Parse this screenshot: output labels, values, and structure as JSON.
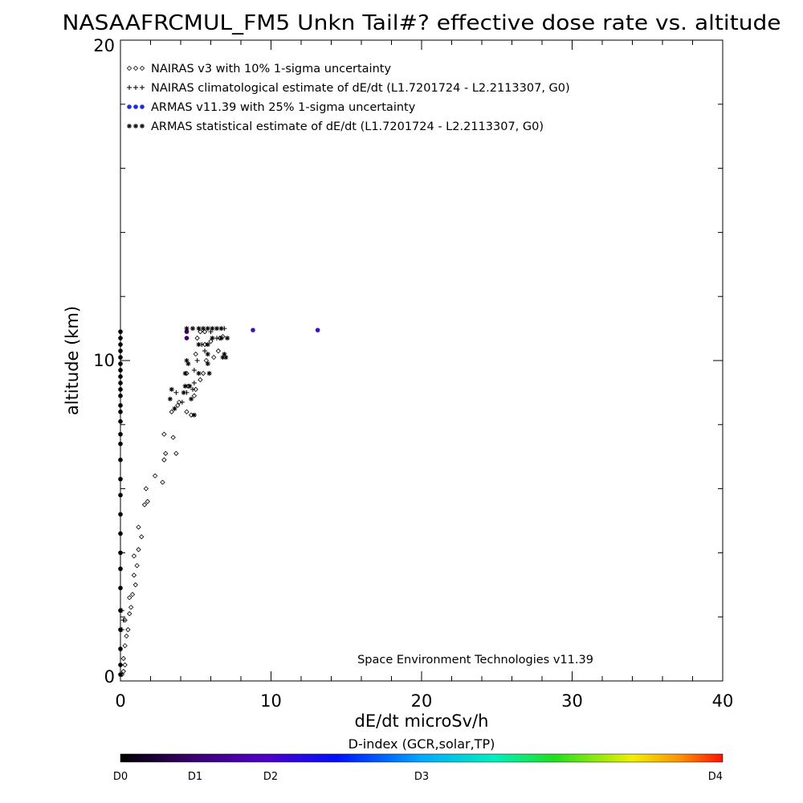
{
  "chart_data": {
    "type": "scatter",
    "title": "NASAAFRCMUL_FM5 Unkn Tail#? effective dose rate vs. altitude",
    "xlabel": "dE/dt microSv/h",
    "ylabel": "altitude (km)",
    "xlim": [
      0,
      40
    ],
    "ylim": [
      0,
      20
    ],
    "xticks": [
      "0",
      "10",
      "20",
      "30",
      "40"
    ],
    "yticks": [
      "0",
      "10",
      "20"
    ],
    "grid": false,
    "legend_position": "top-left",
    "annotation": "Space Environment Technologies v11.39",
    "legend": [
      {
        "marker": "diamond",
        "label": "NAIRAS v3 with 10% 1-sigma uncertainty"
      },
      {
        "marker": "plus",
        "label": "NAIRAS climatological estimate of dE/dt (L1.7201724 - L2.2113307, G0)"
      },
      {
        "marker": "dot",
        "label": "ARMAS v11.39 with 25% 1-sigma uncertainty"
      },
      {
        "marker": "asterisk",
        "label": "ARMAS statistical estimate of dE/dt (L1.7201724 - L2.2113307, G0)"
      }
    ],
    "series": [
      {
        "name": "NAIRAS v3 with 10% 1-sigma uncertainty",
        "marker": "diamond",
        "points": [
          [
            0.1,
            0.2
          ],
          [
            0.2,
            0.3
          ],
          [
            0.3,
            0.5
          ],
          [
            0.2,
            0.7
          ],
          [
            0.3,
            1.1
          ],
          [
            0.4,
            1.4
          ],
          [
            0.5,
            1.6
          ],
          [
            0.3,
            1.9
          ],
          [
            0.6,
            2.1
          ],
          [
            0.7,
            2.3
          ],
          [
            0.6,
            2.6
          ],
          [
            0.8,
            2.7
          ],
          [
            1.0,
            3.0
          ],
          [
            0.9,
            3.3
          ],
          [
            1.1,
            3.6
          ],
          [
            0.9,
            3.9
          ],
          [
            1.2,
            4.1
          ],
          [
            1.4,
            4.5
          ],
          [
            1.2,
            4.8
          ],
          [
            1.6,
            5.5
          ],
          [
            1.8,
            5.6
          ],
          [
            1.7,
            6.0
          ],
          [
            2.3,
            6.4
          ],
          [
            2.8,
            6.2
          ],
          [
            2.9,
            6.9
          ],
          [
            3.0,
            7.1
          ],
          [
            3.7,
            7.1
          ],
          [
            3.5,
            7.6
          ],
          [
            2.9,
            7.7
          ],
          [
            3.4,
            8.4
          ],
          [
            3.9,
            8.7
          ],
          [
            4.4,
            8.4
          ],
          [
            3.8,
            8.6
          ],
          [
            4.7,
            8.3
          ],
          [
            4.9,
            8.9
          ],
          [
            4.5,
            9.2
          ],
          [
            5.0,
            9.1
          ],
          [
            4.4,
            9.6
          ],
          [
            5.3,
            9.4
          ],
          [
            5.5,
            9.6
          ],
          [
            5.7,
            10.0
          ],
          [
            5.0,
            10.2
          ],
          [
            6.2,
            10.1
          ],
          [
            6.5,
            10.3
          ],
          [
            5.6,
            10.5
          ],
          [
            6.0,
            10.6
          ],
          [
            6.6,
            10.7
          ],
          [
            5.1,
            10.7
          ],
          [
            5.3,
            10.9
          ],
          [
            5.6,
            10.9
          ],
          [
            6.8,
            10.75
          ]
        ]
      },
      {
        "name": "NAIRAS climatological estimate of dE/dt (L1.7201724 - L2.2113307, G0)",
        "marker": "plus",
        "points": [
          [
            0.1,
            1.6
          ],
          [
            0.2,
            1.9
          ],
          [
            0.1,
            2.2
          ],
          [
            4.1,
            8.7
          ],
          [
            3.7,
            9.0
          ],
          [
            4.8,
            9.1
          ],
          [
            4.9,
            9.3
          ],
          [
            4.4,
            9.0
          ],
          [
            4.9,
            9.7
          ],
          [
            5.1,
            10.0
          ],
          [
            5.6,
            10.3
          ],
          [
            5.4,
            10.5
          ],
          [
            6.0,
            10.9
          ],
          [
            6.4,
            10.7
          ],
          [
            6.9,
            11.0
          ]
        ]
      },
      {
        "name": "ARMAS v11.39 with 25% 1-sigma uncertainty",
        "marker": "dot",
        "points": [
          [
            0.0,
            0.2
          ],
          [
            0.0,
            0.5
          ],
          [
            0.0,
            1.0
          ],
          [
            0.0,
            1.6
          ],
          [
            0.0,
            2.2
          ],
          [
            0.0,
            2.9
          ],
          [
            0.0,
            3.5
          ],
          [
            0.0,
            4.0
          ],
          [
            0.0,
            4.6
          ],
          [
            0.0,
            5.2
          ],
          [
            0.0,
            5.8
          ],
          [
            0.0,
            6.3
          ],
          [
            0.0,
            6.9
          ],
          [
            0.0,
            7.4
          ],
          [
            0.0,
            7.7
          ],
          [
            0.0,
            8.1
          ],
          [
            0.0,
            8.4
          ],
          [
            0.0,
            8.6
          ],
          [
            0.0,
            8.9
          ],
          [
            0.0,
            9.1
          ],
          [
            0.0,
            9.3
          ],
          [
            0.0,
            9.5
          ],
          [
            0.0,
            9.7
          ],
          [
            0.0,
            9.9
          ],
          [
            0.0,
            10.1
          ],
          [
            0.0,
            10.3
          ],
          [
            0.0,
            10.5
          ],
          [
            0.0,
            10.7
          ],
          [
            0.0,
            10.9
          ],
          [
            4.4,
            10.9
          ],
          [
            4.4,
            10.7
          ],
          [
            8.8,
            10.95
          ],
          [
            13.1,
            10.95
          ]
        ],
        "color_scale": "D-index"
      },
      {
        "name": "ARMAS statistical estimate of dE/dt (L1.7201724 - L2.2113307, G0)",
        "marker": "asterisk",
        "points": [
          [
            3.3,
            8.8
          ],
          [
            3.4,
            9.1
          ],
          [
            3.6,
            8.5
          ],
          [
            4.2,
            9.0
          ],
          [
            4.3,
            9.2
          ],
          [
            4.6,
            9.2
          ],
          [
            4.7,
            8.8
          ],
          [
            4.9,
            8.3
          ],
          [
            4.3,
            9.6
          ],
          [
            4.5,
            9.9
          ],
          [
            4.4,
            10.0
          ],
          [
            5.2,
            9.6
          ],
          [
            5.9,
            9.6
          ],
          [
            5.8,
            9.9
          ],
          [
            5.2,
            10.5
          ],
          [
            5.8,
            10.5
          ],
          [
            6.1,
            10.7
          ],
          [
            6.7,
            10.7
          ],
          [
            7.1,
            10.7
          ],
          [
            6.8,
            10.1
          ],
          [
            6.9,
            10.2
          ],
          [
            7.0,
            10.1
          ],
          [
            5.8,
            10.2
          ],
          [
            4.8,
            11.0
          ],
          [
            5.2,
            11.0
          ],
          [
            5.5,
            11.0
          ],
          [
            5.8,
            11.0
          ],
          [
            6.1,
            11.0
          ],
          [
            6.4,
            11.0
          ],
          [
            6.7,
            11.0
          ],
          [
            4.4,
            11.0
          ]
        ]
      }
    ],
    "colorbar": {
      "label": "D-index (GCR,solar,TP)",
      "ticks": [
        {
          "label": "D0",
          "value": 0
        },
        {
          "label": "D1",
          "value": 0.2
        },
        {
          "label": "D2",
          "value": 0.4
        },
        {
          "label": "D3",
          "value": 0.6
        },
        {
          "label": "D4",
          "value": 1.0
        }
      ],
      "colors": [
        "#000000",
        "#5a00a0",
        "#0020ff",
        "#00e0ff",
        "#20e020",
        "#f0f000",
        "#ff2000"
      ]
    }
  }
}
